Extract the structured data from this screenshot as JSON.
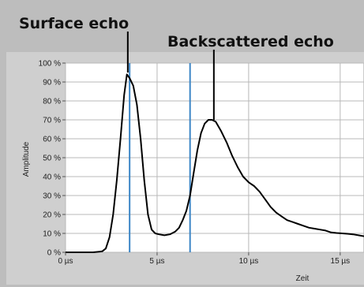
{
  "annotations": {
    "surface": "Surface echo",
    "backscatter": "Backscattered echo"
  },
  "chart_data": {
    "type": "line",
    "title": "",
    "xlabel": "Zeit",
    "ylabel": "Amplitude",
    "xlim": [
      0,
      16.3
    ],
    "ylim": [
      0,
      100
    ],
    "x_ticks": [
      {
        "value": 0,
        "label": "0 µs"
      },
      {
        "value": 5,
        "label": "5 µs"
      },
      {
        "value": 10,
        "label": "10 µs"
      },
      {
        "value": 15,
        "label": "15 µs"
      }
    ],
    "y_ticks": [
      {
        "value": 0,
        "label": "0 %"
      },
      {
        "value": 10,
        "label": "10 %"
      },
      {
        "value": 20,
        "label": "20 %"
      },
      {
        "value": 30,
        "label": "30 %"
      },
      {
        "value": 40,
        "label": "40 %"
      },
      {
        "value": 50,
        "label": "50 %"
      },
      {
        "value": 60,
        "label": "60 %"
      },
      {
        "value": 70,
        "label": "70 %"
      },
      {
        "value": 80,
        "label": "80 %"
      },
      {
        "value": 90,
        "label": "90 %"
      },
      {
        "value": 100,
        "label": "100 %"
      }
    ],
    "grid": true,
    "markers": [
      {
        "x": 3.5,
        "color": "#3c86c6"
      },
      {
        "x": 6.8,
        "color": "#3c86c6"
      }
    ],
    "callouts": [
      {
        "key": "surface",
        "x": 3.4,
        "y": 95
      },
      {
        "key": "backscatter",
        "x": 8.1,
        "y": 70
      }
    ],
    "series": [
      {
        "color": "#000000",
        "x": [
          0,
          1.5,
          2.0,
          2.2,
          2.4,
          2.6,
          2.8,
          3.0,
          3.2,
          3.35,
          3.5,
          3.7,
          3.9,
          4.1,
          4.3,
          4.5,
          4.7,
          4.9,
          5.1,
          5.4,
          5.7,
          6.0,
          6.2,
          6.4,
          6.6,
          6.8,
          7.0,
          7.2,
          7.4,
          7.6,
          7.8,
          8.0,
          8.2,
          8.5,
          8.8,
          9.1,
          9.4,
          9.7,
          10.0,
          10.3,
          10.6,
          10.9,
          11.2,
          11.5,
          11.8,
          12.1,
          12.4,
          12.7,
          13.0,
          13.3,
          13.6,
          13.9,
          14.2,
          14.5,
          14.8,
          15.1,
          15.4,
          15.7,
          16.0,
          16.3
        ],
        "y": [
          0,
          0,
          0.5,
          2,
          8,
          20,
          38,
          60,
          83,
          94,
          92,
          88,
          78,
          60,
          38,
          20,
          12,
          10,
          9.5,
          9,
          9.5,
          11,
          13,
          17,
          22,
          30,
          42,
          54,
          63,
          68,
          70,
          70,
          69,
          64,
          58,
          51,
          45,
          40,
          37,
          35,
          32,
          28,
          24,
          21,
          19,
          17,
          16,
          15,
          14,
          13,
          12.5,
          12,
          11.5,
          10.5,
          10.2,
          10,
          9.8,
          9.5,
          9,
          8.5
        ]
      }
    ]
  }
}
